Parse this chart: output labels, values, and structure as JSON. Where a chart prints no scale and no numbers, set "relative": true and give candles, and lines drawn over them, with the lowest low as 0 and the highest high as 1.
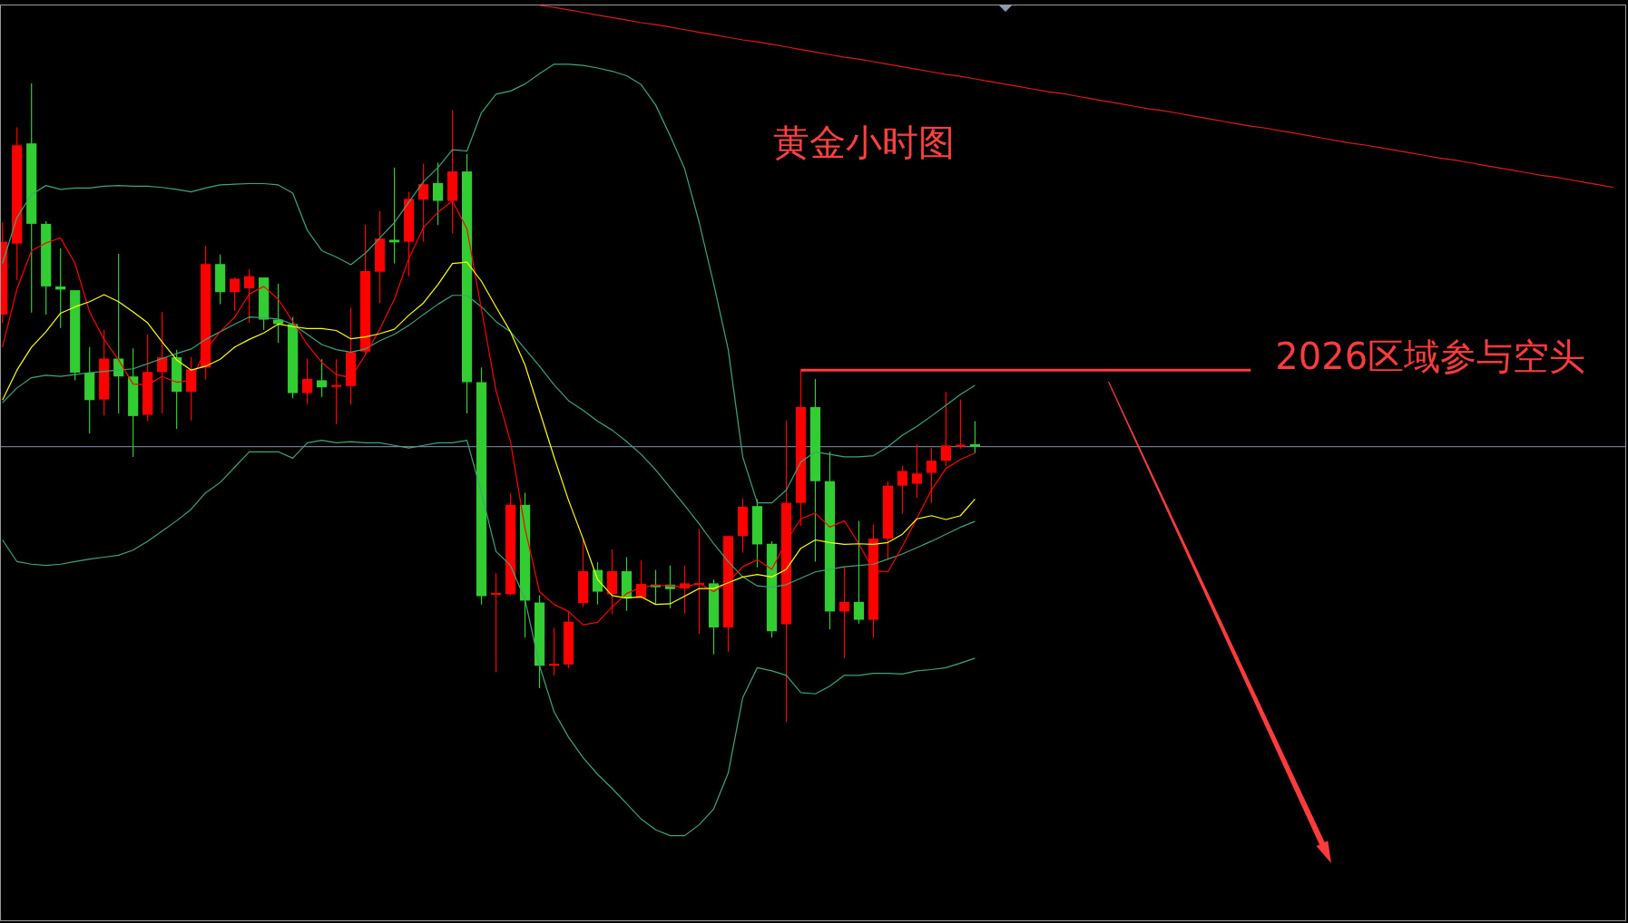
{
  "chart_data": {
    "type": "candlestick",
    "title": "黄金小时图",
    "relative": true,
    "categories": [
      null,
      null,
      null,
      null,
      null,
      null,
      null,
      null,
      null,
      null,
      null,
      null,
      null,
      null,
      null,
      null,
      null,
      null,
      null,
      null,
      null,
      null,
      null,
      null,
      null,
      null,
      null,
      null,
      null,
      null,
      null,
      null,
      null,
      null,
      null,
      null,
      null,
      null,
      null,
      null,
      null,
      null,
      null,
      null,
      null,
      null,
      null,
      null,
      null,
      null,
      null,
      null,
      null,
      null,
      null,
      null,
      null,
      null,
      null,
      null,
      null,
      null,
      null,
      null,
      null,
      null,
      null,
      null,
      null,
      null,
      null,
      null,
      null,
      null,
      null,
      null,
      null,
      null,
      null,
      null,
      null,
      null,
      null,
      null,
      null,
      null,
      null,
      null,
      null,
      null,
      null,
      null,
      null,
      null,
      null,
      null,
      null,
      null,
      null,
      null,
      null,
      null,
      null,
      null,
      null,
      null,
      null,
      null,
      null,
      null,
      null,
      null
    ],
    "ohlc": [
      [
        0.638,
        0.782,
        0.625,
        0.752
      ],
      [
        0.749,
        0.931,
        0.692,
        0.903
      ],
      [
        0.906,
        1.0,
        0.641,
        0.78
      ],
      [
        0.78,
        0.784,
        0.638,
        0.682
      ],
      [
        0.682,
        0.742,
        0.617,
        0.677
      ],
      [
        0.676,
        0.676,
        0.535,
        0.547
      ],
      [
        0.547,
        0.587,
        0.452,
        0.504
      ],
      [
        0.505,
        0.614,
        0.48,
        0.569
      ],
      [
        0.569,
        0.733,
        0.483,
        0.541
      ],
      [
        0.541,
        0.585,
        0.415,
        0.479
      ],
      [
        0.481,
        0.607,
        0.471,
        0.548
      ],
      [
        0.548,
        0.642,
        0.483,
        0.571
      ],
      [
        0.571,
        0.583,
        0.459,
        0.517
      ],
      [
        0.517,
        0.571,
        0.472,
        0.552
      ],
      [
        0.555,
        0.745,
        0.536,
        0.717
      ],
      [
        0.717,
        0.732,
        0.654,
        0.673
      ],
      [
        0.673,
        0.696,
        0.644,
        0.694
      ],
      [
        0.679,
        0.709,
        0.625,
        0.698
      ],
      [
        0.696,
        0.696,
        0.614,
        0.63
      ],
      [
        0.63,
        0.686,
        0.594,
        0.623
      ],
      [
        0.623,
        0.634,
        0.507,
        0.515
      ],
      [
        0.515,
        0.569,
        0.498,
        0.537
      ],
      [
        0.535,
        0.568,
        0.509,
        0.524
      ],
      [
        0.525,
        0.568,
        0.466,
        0.527
      ],
      [
        0.526,
        0.649,
        0.497,
        0.579
      ],
      [
        0.58,
        0.778,
        0.577,
        0.706
      ],
      [
        0.705,
        0.8,
        0.656,
        0.757
      ],
      [
        0.755,
        0.868,
        0.718,
        0.751
      ],
      [
        0.752,
        0.83,
        0.698,
        0.819
      ],
      [
        0.818,
        0.874,
        0.752,
        0.842
      ],
      [
        0.844,
        0.876,
        0.778,
        0.816
      ],
      [
        0.816,
        0.958,
        0.765,
        0.862
      ],
      [
        0.862,
        0.889,
        0.483,
        0.532
      ],
      [
        0.532,
        0.555,
        0.184,
        0.197
      ],
      [
        0.2,
        0.233,
        0.078,
        0.201
      ],
      [
        0.2,
        0.358,
        0.198,
        0.34
      ],
      [
        0.34,
        0.359,
        0.132,
        0.19
      ],
      [
        0.187,
        0.198,
        0.053,
        0.088
      ],
      [
        0.088,
        0.147,
        0.073,
        0.091
      ],
      [
        0.09,
        0.173,
        0.084,
        0.157
      ],
      [
        0.186,
        0.286,
        0.18,
        0.236
      ],
      [
        0.238,
        0.25,
        0.184,
        0.204
      ],
      [
        0.2,
        0.27,
        0.169,
        0.236
      ],
      [
        0.236,
        0.258,
        0.174,
        0.194
      ],
      [
        0.194,
        0.253,
        0.193,
        0.216
      ],
      [
        0.215,
        0.238,
        0.184,
        0.211
      ],
      [
        0.215,
        0.245,
        0.178,
        0.208
      ],
      [
        0.209,
        0.245,
        0.17,
        0.217
      ],
      [
        0.215,
        0.302,
        0.138,
        0.217
      ],
      [
        0.217,
        0.223,
        0.106,
        0.148
      ],
      [
        0.148,
        0.292,
        0.11,
        0.291
      ],
      [
        0.291,
        0.35,
        0.265,
        0.337
      ],
      [
        0.338,
        0.349,
        0.242,
        0.278
      ],
      [
        0.279,
        0.283,
        0.132,
        0.142
      ],
      [
        0.153,
        0.472,
        0.0,
        0.343
      ],
      [
        0.343,
        0.551,
        0.307,
        0.493
      ],
      [
        0.493,
        0.537,
        0.251,
        0.377
      ],
      [
        0.377,
        0.423,
        0.145,
        0.173
      ],
      [
        0.173,
        0.243,
        0.1,
        0.188
      ],
      [
        0.188,
        0.315,
        0.154,
        0.16
      ],
      [
        0.16,
        0.309,
        0.132,
        0.287
      ],
      [
        0.287,
        0.377,
        0.254,
        0.37
      ],
      [
        0.37,
        0.401,
        0.326,
        0.393
      ],
      [
        0.373,
        0.435,
        0.351,
        0.389
      ],
      [
        0.39,
        0.429,
        0.343,
        0.409
      ],
      [
        0.409,
        0.517,
        0.401,
        0.433
      ],
      [
        0.431,
        0.505,
        0.428,
        0.434
      ],
      [
        0.435,
        0.471,
        0.421,
        0.431
      ],
      null,
      null,
      null,
      null,
      null,
      null,
      null,
      null,
      null,
      null,
      null,
      null,
      null,
      null,
      null,
      null,
      null,
      null,
      null,
      null,
      null,
      null,
      null,
      null,
      null,
      null,
      null,
      null,
      null,
      null,
      null,
      null,
      null,
      null,
      null,
      null,
      null,
      null,
      null,
      null,
      null,
      null,
      null,
      null
    ],
    "colors": [
      "#ff0000",
      "#ff0000",
      "#32cd32",
      "#32cd32",
      "#32cd32",
      "#32cd32",
      "#32cd32",
      "#ff0000",
      "#32cd32",
      "#32cd32",
      "#ff0000",
      "#ff0000",
      "#32cd32",
      "#ff0000",
      "#ff0000",
      "#32cd32",
      "#ff0000",
      "#ff0000",
      "#32cd32",
      "#32cd32",
      "#32cd32",
      "#ff0000",
      "#32cd32",
      "#ff0000",
      "#ff0000",
      "#ff0000",
      "#ff0000",
      "#32cd32",
      "#ff0000",
      "#ff0000",
      "#32cd32",
      "#ff0000",
      "#32cd32",
      "#32cd32",
      "#ff0000",
      "#ff0000",
      "#32cd32",
      "#32cd32",
      "#ff0000",
      "#ff0000",
      "#ff0000",
      "#32cd32",
      "#ff0000",
      "#32cd32",
      "#ff0000",
      "#32cd32",
      "#32cd32",
      "#ff0000",
      "#ff0000",
      "#32cd32",
      "#ff0000",
      "#ff0000",
      "#32cd32",
      "#32cd32",
      "#ff0000",
      "#ff0000",
      "#32cd32",
      "#32cd32",
      "#ff0000",
      "#32cd32",
      "#ff0000",
      "#ff0000",
      "#ff0000",
      "#ff0000",
      "#ff0000",
      "#ff0000",
      "#ff0000",
      "#32cd32",
      null,
      null,
      null,
      null,
      null,
      null,
      null,
      null,
      null,
      null,
      null,
      null,
      null,
      null,
      null,
      null,
      null,
      null,
      null,
      null,
      null,
      null,
      null,
      null,
      null,
      null,
      null,
      null,
      null,
      null,
      null,
      null,
      null,
      null,
      null,
      null,
      null,
      null,
      null,
      null,
      null,
      null,
      null,
      null
    ],
    "series": [
      {
        "type": "line",
        "color": "#3aa67a",
        "values": [
          0.718,
          0.79,
          0.826,
          0.84,
          0.834,
          0.836,
          0.836,
          0.839,
          0.84,
          0.839,
          0.839,
          0.837,
          0.834,
          0.83,
          0.836,
          0.841,
          0.842,
          0.843,
          0.843,
          0.841,
          0.828,
          0.77,
          0.738,
          0.728,
          0.716,
          0.734,
          0.758,
          0.782,
          0.814,
          0.846,
          0.868,
          0.896,
          0.894,
          0.954,
          0.983,
          0.988,
          0.999,
          1.015,
          1.03,
          1.03,
          1.028,
          1.024,
          1.019,
          1.012,
          0.998,
          0.966,
          0.918,
          0.866,
          0.782,
          0.686,
          0.583,
          0.415,
          0.343,
          0.343,
          0.363,
          0.407,
          0.423,
          0.419,
          0.415,
          0.415,
          0.417,
          0.431,
          0.449,
          0.463,
          0.479,
          0.496,
          0.513,
          0.527,
          null,
          null,
          null,
          null,
          null,
          null,
          null,
          null,
          null,
          null,
          null,
          null,
          null,
          null,
          null,
          null,
          null,
          null,
          null,
          null,
          null,
          null,
          null,
          null,
          null,
          null,
          null,
          null,
          null,
          null,
          null,
          null,
          null,
          null,
          null,
          null,
          null,
          null,
          null,
          null,
          null,
          null,
          null,
          null
        ]
      },
      {
        "type": "line",
        "color": "#3aa67a",
        "values": [
          0.5,
          0.523,
          0.539,
          0.543,
          0.541,
          0.544,
          0.547,
          0.549,
          0.551,
          0.553,
          0.561,
          0.569,
          0.577,
          0.584,
          0.599,
          0.611,
          0.623,
          0.634,
          0.633,
          0.631,
          0.623,
          0.607,
          0.591,
          0.583,
          0.579,
          0.584,
          0.597,
          0.607,
          0.621,
          0.638,
          0.654,
          0.668,
          0.668,
          0.65,
          0.627,
          0.611,
          0.584,
          0.557,
          0.528,
          0.503,
          0.488,
          0.471,
          0.457,
          0.439,
          0.419,
          0.395,
          0.367,
          0.339,
          0.31,
          0.279,
          0.251,
          0.227,
          0.213,
          0.211,
          0.215,
          0.225,
          0.235,
          0.239,
          0.243,
          0.245,
          0.247,
          0.255,
          0.263,
          0.273,
          0.283,
          0.294,
          0.305,
          0.314,
          null,
          null,
          null,
          null,
          null,
          null,
          null,
          null,
          null,
          null,
          null,
          null,
          null,
          null,
          null,
          null,
          null,
          null,
          null,
          null,
          null,
          null,
          null,
          null,
          null,
          null,
          null,
          null,
          null,
          null,
          null,
          null,
          null,
          null,
          null,
          null,
          null,
          null,
          null,
          null,
          null,
          null,
          null,
          null
        ]
      },
      {
        "type": "line",
        "color": "#3aa67a",
        "values": [
          0.285,
          0.251,
          0.247,
          0.245,
          0.247,
          0.251,
          0.255,
          0.258,
          0.261,
          0.269,
          0.283,
          0.299,
          0.315,
          0.333,
          0.359,
          0.375,
          0.399,
          0.423,
          0.423,
          0.423,
          0.413,
          0.437,
          0.441,
          0.437,
          0.439,
          0.437,
          0.437,
          0.433,
          0.429,
          0.433,
          0.437,
          0.437,
          0.441,
          0.359,
          0.267,
          0.245,
          0.192,
          0.088,
          0.016,
          -0.024,
          -0.056,
          -0.082,
          -0.104,
          -0.128,
          -0.152,
          -0.169,
          -0.178,
          -0.178,
          -0.161,
          -0.136,
          -0.08,
          0.038,
          0.085,
          0.08,
          0.073,
          0.046,
          0.044,
          0.056,
          0.073,
          0.073,
          0.076,
          0.076,
          0.075,
          0.08,
          0.082,
          0.085,
          0.092,
          0.1,
          null,
          null,
          null,
          null,
          null,
          null,
          null,
          null,
          null,
          null,
          null,
          null,
          null,
          null,
          null,
          null,
          null,
          null,
          null,
          null,
          null,
          null,
          null,
          null,
          null,
          null,
          null,
          null,
          null,
          null,
          null,
          null,
          null,
          null,
          null,
          null,
          null,
          null,
          null,
          null,
          null,
          null,
          null,
          null
        ]
      },
      {
        "type": "line",
        "color": "#ff0000",
        "values": [
          0.587,
          0.678,
          0.738,
          0.75,
          0.758,
          0.718,
          0.642,
          0.599,
          0.567,
          0.529,
          0.528,
          0.541,
          0.532,
          0.535,
          0.583,
          0.611,
          0.634,
          0.67,
          0.682,
          0.662,
          0.627,
          0.591,
          0.563,
          0.544,
          0.539,
          0.575,
          0.615,
          0.662,
          0.726,
          0.774,
          0.798,
          0.816,
          0.772,
          0.646,
          0.519,
          0.439,
          0.303,
          0.204,
          0.184,
          0.173,
          0.152,
          0.156,
          0.18,
          0.201,
          0.211,
          0.214,
          0.213,
          0.211,
          0.217,
          0.204,
          0.219,
          0.243,
          0.254,
          0.239,
          0.283,
          0.318,
          0.327,
          0.305,
          0.315,
          0.279,
          0.237,
          0.235,
          0.275,
          0.319,
          0.363,
          0.397,
          0.411,
          0.421,
          null,
          null,
          null,
          null,
          null,
          null,
          null,
          null,
          null,
          null,
          null,
          null,
          null,
          null,
          null,
          null,
          null,
          null,
          null,
          null,
          null,
          null,
          null,
          null,
          null,
          null,
          null,
          null,
          null,
          null,
          null,
          null,
          null,
          null,
          null,
          null,
          null,
          null,
          null,
          null,
          null,
          null,
          null,
          null
        ]
      },
      {
        "type": "line",
        "color": "#ffff00",
        "values": [
          0.504,
          0.551,
          0.587,
          0.611,
          0.64,
          0.65,
          0.658,
          0.669,
          0.658,
          0.642,
          0.625,
          0.595,
          0.567,
          0.551,
          0.557,
          0.568,
          0.587,
          0.599,
          0.609,
          0.623,
          0.619,
          0.616,
          0.616,
          0.613,
          0.6,
          0.603,
          0.608,
          0.615,
          0.637,
          0.656,
          0.685,
          0.718,
          0.72,
          0.69,
          0.65,
          0.611,
          0.559,
          0.487,
          0.415,
          0.347,
          0.287,
          0.223,
          0.198,
          0.194,
          0.196,
          0.184,
          0.185,
          0.197,
          0.209,
          0.209,
          0.218,
          0.227,
          0.231,
          0.227,
          0.239,
          0.272,
          0.285,
          0.281,
          0.278,
          0.279,
          0.278,
          0.281,
          0.294,
          0.318,
          0.323,
          0.317,
          0.323,
          0.349,
          null,
          null,
          null,
          null,
          null,
          null,
          null,
          null,
          null,
          null,
          null,
          null,
          null,
          null,
          null,
          null,
          null,
          null,
          null,
          null,
          null,
          null,
          null,
          null,
          null,
          null,
          null,
          null,
          null,
          null,
          null,
          null,
          null,
          null,
          null,
          null,
          null,
          null,
          null,
          null,
          null,
          null,
          null,
          null
        ]
      },
      {
        "type": "line",
        "color": "#e01818",
        "values": [
          null,
          null,
          null,
          null,
          null,
          null,
          null,
          null,
          null,
          null,
          null,
          null,
          null,
          null,
          null,
          null,
          null,
          null,
          null,
          null,
          null,
          null,
          null,
          null,
          null,
          null,
          null,
          null,
          null,
          null,
          null,
          null,
          null,
          null,
          null,
          null,
          null,
          1.122,
          1.119,
          1.115,
          1.111,
          1.107,
          1.103,
          1.099,
          1.095,
          1.092,
          1.088,
          1.084,
          1.08,
          1.076,
          1.072,
          1.068,
          1.065,
          1.061,
          1.057,
          1.053,
          1.049,
          1.045,
          1.041,
          1.038,
          1.034,
          1.03,
          1.026,
          1.022,
          1.018,
          1.014,
          1.011,
          1.007,
          1.003,
          0.999,
          0.995,
          0.991,
          0.987,
          0.984,
          0.98,
          0.976,
          0.972,
          0.968,
          0.964,
          0.96,
          0.957,
          0.953,
          0.949,
          0.945,
          0.941,
          0.937,
          0.933,
          0.93,
          0.926,
          0.922,
          0.918,
          0.914,
          0.91,
          0.906,
          0.903,
          0.899,
          0.895,
          0.891,
          0.887,
          0.883,
          0.88,
          0.876,
          0.872,
          0.868,
          0.864,
          0.86,
          0.856,
          0.853,
          0.849,
          0.845,
          0.841,
          0.837
        ]
      },
      {
        "type": "line",
        "name": "2026区域参与空头",
        "color": "#ff3b3b",
        "values": [
          null,
          null,
          null,
          null,
          null,
          null,
          null,
          null,
          null,
          null,
          null,
          null,
          null,
          null,
          null,
          null,
          null,
          null,
          null,
          null,
          null,
          null,
          null,
          null,
          null,
          null,
          null,
          null,
          null,
          null,
          null,
          null,
          null,
          null,
          null,
          null,
          null,
          null,
          null,
          null,
          null,
          null,
          null,
          null,
          null,
          null,
          null,
          null,
          null,
          null,
          null,
          null,
          null,
          null,
          null,
          0.551,
          0.551,
          0.551,
          0.551,
          0.551,
          0.551,
          0.551,
          0.551,
          0.551,
          0.551,
          0.551,
          0.551,
          0.551,
          0.551,
          0.551,
          0.551,
          0.551,
          0.551,
          0.551,
          0.551,
          0.551,
          0.551,
          0.551,
          0.551,
          0.551,
          0.551,
          0.551,
          0.551,
          0.551,
          0.551,
          0.551,
          0.551,
          null,
          null,
          null,
          null,
          null,
          null,
          null,
          null,
          null,
          null,
          null,
          null,
          null,
          null,
          null,
          null,
          null,
          null,
          null,
          null,
          null,
          null,
          null,
          null,
          null
        ]
      }
    ],
    "ref_lines": [
      {
        "axis": "y",
        "value": 0.431,
        "color": "#8393aa"
      }
    ]
  }
}
